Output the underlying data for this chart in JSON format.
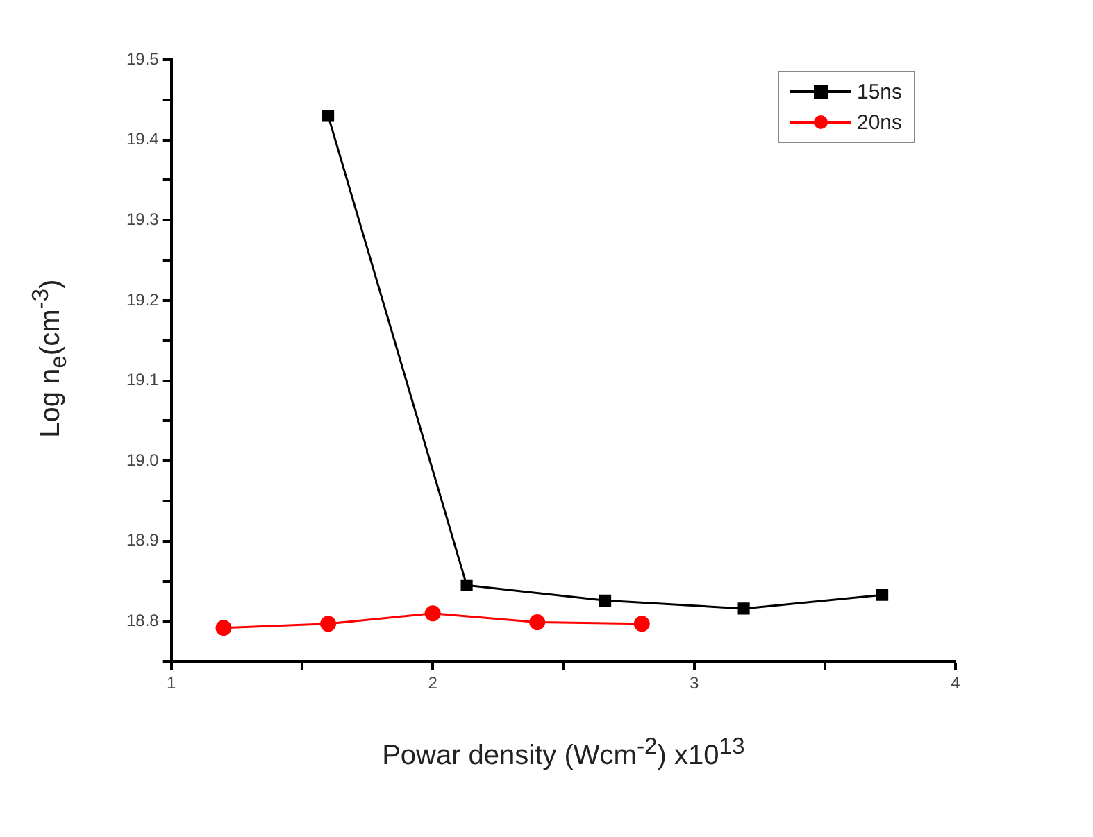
{
  "chart_data": {
    "type": "line",
    "xlabel": "Powar density (Wcm$^{-2}$) x10$^{13}$",
    "ylabel": "Log n$_{e}$(cm$^{-3}$)",
    "series": [
      {
        "name": "15ns",
        "color": "#000000",
        "marker": "square",
        "x": [
          1.6,
          2.13,
          2.66,
          3.19,
          3.72
        ],
        "values": [
          19.43,
          18.845,
          18.826,
          18.816,
          18.833
        ]
      },
      {
        "name": "20ns",
        "color": "#ff0000",
        "marker": "circle",
        "x": [
          1.2,
          1.6,
          2.0,
          2.4,
          2.8
        ],
        "values": [
          18.792,
          18.797,
          18.81,
          18.799,
          18.797
        ]
      }
    ],
    "xlim": [
      1,
      4
    ],
    "xticks": [
      1,
      {
        "value": 1.5,
        "label": null
      },
      2,
      {
        "value": 2.5,
        "label": null
      },
      3,
      {
        "value": 3.5,
        "label": null
      },
      4
    ],
    "ylim": [
      18.75,
      19.5
    ],
    "yticks": [
      {
        "value": 18.75,
        "label": null
      },
      18.8,
      {
        "value": 18.85,
        "label": null
      },
      18.9,
      {
        "value": 18.95,
        "label": null
      },
      {
        "value": 19.0,
        "label": "19.0"
      },
      {
        "value": 19.05,
        "label": null
      },
      19.1,
      {
        "value": 19.15,
        "label": null
      },
      19.2,
      {
        "value": 19.25,
        "label": null
      },
      19.3,
      {
        "value": 19.35,
        "label": null
      },
      19.4,
      {
        "value": 19.45,
        "label": null
      },
      19.5
    ],
    "grid": false,
    "legend": "top right",
    "line_style": "solid"
  }
}
